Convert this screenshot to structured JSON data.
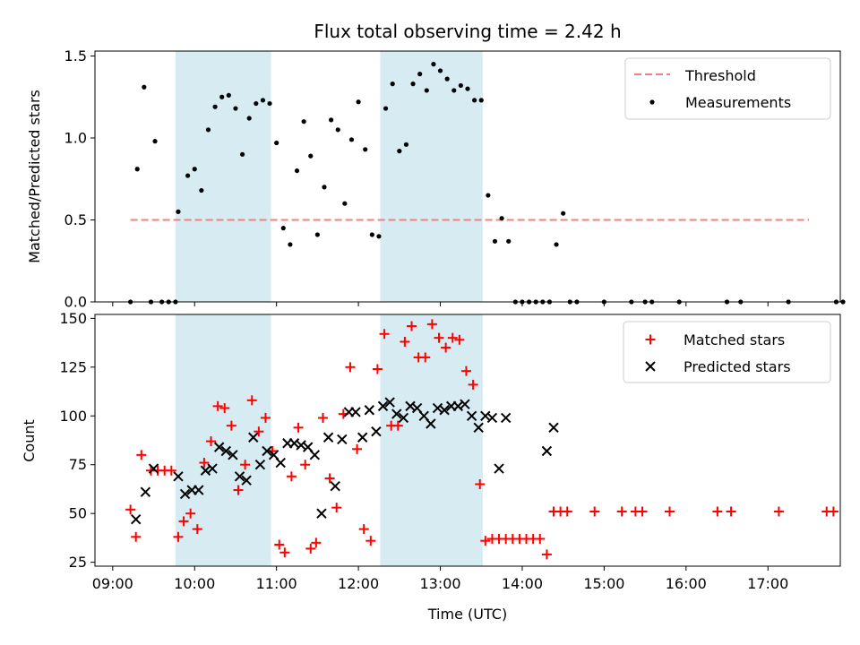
{
  "title": "Flux total observing time = 2.42 h",
  "shaded_intervals": [
    [
      "09:46",
      "10:56"
    ],
    [
      "12:16",
      "13:31"
    ]
  ],
  "colors": {
    "shade": "#add8e6",
    "threshold": "#f08080",
    "matched": "#ff0000",
    "predicted": "#000000",
    "measurement": "#000000"
  },
  "chart_data": [
    {
      "type": "scatter",
      "ylabel": "Matched/Predicted stars",
      "ylim": [
        0,
        1.53
      ],
      "yticks": [
        0.0,
        0.5,
        1.0,
        1.5
      ],
      "ytick_labels": [
        "0.0",
        "0.5",
        "1.0",
        "1.5"
      ],
      "threshold": {
        "label": "Threshold",
        "value": 0.5,
        "x": [
          "09:13",
          "17:30"
        ]
      },
      "legend": {
        "position": "upper right",
        "entries": [
          "Threshold",
          "Measurements"
        ]
      },
      "series": [
        {
          "name": "Measurements",
          "marker": "dot",
          "points": [
            [
              "09:13",
              0.0
            ],
            [
              "09:18",
              0.81
            ],
            [
              "09:23",
              1.31
            ],
            [
              "09:28",
              0.0
            ],
            [
              "09:31",
              0.98
            ],
            [
              "09:36",
              0.0
            ],
            [
              "09:41",
              0.0
            ],
            [
              "09:46",
              0.0
            ],
            [
              "09:48",
              0.55
            ],
            [
              "09:55",
              0.77
            ],
            [
              "10:00",
              0.81
            ],
            [
              "10:05",
              0.68
            ],
            [
              "10:10",
              1.05
            ],
            [
              "10:15",
              1.19
            ],
            [
              "10:20",
              1.25
            ],
            [
              "10:25",
              1.26
            ],
            [
              "10:30",
              1.18
            ],
            [
              "10:35",
              0.9
            ],
            [
              "10:40",
              1.12
            ],
            [
              "10:45",
              1.21
            ],
            [
              "10:50",
              1.23
            ],
            [
              "10:55",
              1.21
            ],
            [
              "11:00",
              0.97
            ],
            [
              "11:05",
              0.45
            ],
            [
              "11:10",
              0.35
            ],
            [
              "11:15",
              0.8
            ],
            [
              "11:20",
              1.1
            ],
            [
              "11:25",
              0.89
            ],
            [
              "11:30",
              0.41
            ],
            [
              "11:35",
              0.7
            ],
            [
              "11:40",
              1.11
            ],
            [
              "11:45",
              1.05
            ],
            [
              "11:50",
              0.6
            ],
            [
              "11:55",
              0.99
            ],
            [
              "12:00",
              1.22
            ],
            [
              "12:05",
              0.93
            ],
            [
              "12:10",
              0.41
            ],
            [
              "12:15",
              0.4
            ],
            [
              "12:20",
              1.18
            ],
            [
              "12:25",
              1.33
            ],
            [
              "12:30",
              0.92
            ],
            [
              "12:35",
              0.96
            ],
            [
              "12:40",
              1.33
            ],
            [
              "12:45",
              1.39
            ],
            [
              "12:50",
              1.29
            ],
            [
              "12:55",
              1.45
            ],
            [
              "13:00",
              1.41
            ],
            [
              "13:05",
              1.36
            ],
            [
              "13:10",
              1.29
            ],
            [
              "13:15",
              1.32
            ],
            [
              "13:20",
              1.3
            ],
            [
              "13:25",
              1.23
            ],
            [
              "13:30",
              1.23
            ],
            [
              "13:35",
              0.65
            ],
            [
              "13:40",
              0.37
            ],
            [
              "13:45",
              0.51
            ],
            [
              "13:50",
              0.37
            ],
            [
              "13:55",
              0.0
            ],
            [
              "14:00",
              0.0
            ],
            [
              "14:05",
              0.0
            ],
            [
              "14:10",
              0.0
            ],
            [
              "14:15",
              0.0
            ],
            [
              "14:20",
              0.0
            ],
            [
              "14:25",
              0.35
            ],
            [
              "14:30",
              0.54
            ],
            [
              "14:35",
              0.0
            ],
            [
              "14:40",
              0.0
            ],
            [
              "15:00",
              0.0
            ],
            [
              "15:20",
              0.0
            ],
            [
              "15:30",
              0.0
            ],
            [
              "15:35",
              0.0
            ],
            [
              "15:55",
              0.0
            ],
            [
              "16:30",
              0.0
            ],
            [
              "16:40",
              0.0
            ],
            [
              "17:15",
              0.0
            ],
            [
              "17:50",
              0.0
            ],
            [
              "17:55",
              0.0
            ]
          ]
        }
      ]
    },
    {
      "type": "scatter",
      "xlabel": "Time (UTC)",
      "ylabel": "Count",
      "ylim": [
        23,
        152
      ],
      "yticks": [
        25,
        50,
        75,
        100,
        125,
        150
      ],
      "ytick_labels": [
        "25",
        "50",
        "75",
        "100",
        "125",
        "150"
      ],
      "xlim": [
        "08:47",
        "17:53"
      ],
      "xticks": [
        "09:00",
        "10:00",
        "11:00",
        "12:00",
        "13:00",
        "14:00",
        "15:00",
        "16:00",
        "17:00"
      ],
      "xtick_labels": [
        "09:00",
        "10:00",
        "11:00",
        "12:00",
        "13:00",
        "14:00",
        "15:00",
        "16:00",
        "17:00"
      ],
      "legend": {
        "position": "upper right",
        "entries": [
          "Matched stars",
          "Predicted stars"
        ]
      },
      "series": [
        {
          "name": "Matched stars",
          "marker": "plus",
          "points": [
            [
              "09:13",
              52
            ],
            [
              "09:17",
              38
            ],
            [
              "09:21",
              80
            ],
            [
              "09:28",
              72
            ],
            [
              "09:33",
              72
            ],
            [
              "09:38",
              72
            ],
            [
              "09:43",
              72
            ],
            [
              "09:48",
              38
            ],
            [
              "09:52",
              46
            ],
            [
              "09:57",
              50
            ],
            [
              "10:02",
              42
            ],
            [
              "10:07",
              76
            ],
            [
              "10:12",
              87
            ],
            [
              "10:17",
              105
            ],
            [
              "10:22",
              104
            ],
            [
              "10:27",
              95
            ],
            [
              "10:32",
              62
            ],
            [
              "10:37",
              75
            ],
            [
              "10:42",
              108
            ],
            [
              "10:47",
              92
            ],
            [
              "10:52",
              99
            ],
            [
              "10:57",
              82
            ],
            [
              "11:02",
              34
            ],
            [
              "11:06",
              30
            ],
            [
              "11:11",
              69
            ],
            [
              "11:16",
              94
            ],
            [
              "11:21",
              75
            ],
            [
              "11:25",
              32
            ],
            [
              "11:29",
              35
            ],
            [
              "11:34",
              99
            ],
            [
              "11:39",
              68
            ],
            [
              "11:44",
              53
            ],
            [
              "11:49",
              101
            ],
            [
              "11:54",
              125
            ],
            [
              "11:59",
              83
            ],
            [
              "12:04",
              42
            ],
            [
              "12:09",
              36
            ],
            [
              "12:14",
              124
            ],
            [
              "12:19",
              142
            ],
            [
              "12:24",
              95
            ],
            [
              "12:29",
              95
            ],
            [
              "12:34",
              138
            ],
            [
              "12:39",
              146
            ],
            [
              "12:44",
              130
            ],
            [
              "12:49",
              130
            ],
            [
              "12:54",
              147
            ],
            [
              "12:59",
              140
            ],
            [
              "13:04",
              135
            ],
            [
              "13:09",
              140
            ],
            [
              "13:14",
              139
            ],
            [
              "13:19",
              123
            ],
            [
              "13:24",
              116
            ],
            [
              "13:29",
              65
            ],
            [
              "13:33",
              36
            ],
            [
              "13:38",
              37
            ],
            [
              "13:43",
              37
            ],
            [
              "13:48",
              37
            ],
            [
              "13:53",
              37
            ],
            [
              "13:58",
              37
            ],
            [
              "14:03",
              37
            ],
            [
              "14:08",
              37
            ],
            [
              "14:13",
              37
            ],
            [
              "14:18",
              29
            ],
            [
              "14:23",
              51
            ],
            [
              "14:28",
              51
            ],
            [
              "14:33",
              51
            ],
            [
              "14:53",
              51
            ],
            [
              "15:13",
              51
            ],
            [
              "15:23",
              51
            ],
            [
              "15:28",
              51
            ],
            [
              "15:48",
              51
            ],
            [
              "16:23",
              51
            ],
            [
              "16:33",
              51
            ],
            [
              "17:08",
              51
            ],
            [
              "17:43",
              51
            ],
            [
              "17:48",
              51
            ]
          ]
        },
        {
          "name": "Predicted stars",
          "marker": "x",
          "points": [
            [
              "09:17",
              47
            ],
            [
              "09:24",
              61
            ],
            [
              "09:30",
              73
            ],
            [
              "09:48",
              69
            ],
            [
              "09:53",
              60
            ],
            [
              "09:58",
              62
            ],
            [
              "10:03",
              62
            ],
            [
              "10:08",
              72
            ],
            [
              "10:13",
              73
            ],
            [
              "10:18",
              84
            ],
            [
              "10:23",
              82
            ],
            [
              "10:28",
              80
            ],
            [
              "10:33",
              69
            ],
            [
              "10:38",
              67
            ],
            [
              "10:43",
              89
            ],
            [
              "10:48",
              75
            ],
            [
              "10:53",
              82
            ],
            [
              "10:58",
              80
            ],
            [
              "11:03",
              76
            ],
            [
              "11:08",
              86
            ],
            [
              "11:13",
              86
            ],
            [
              "11:18",
              85
            ],
            [
              "11:23",
              84
            ],
            [
              "11:28",
              80
            ],
            [
              "11:33",
              50
            ],
            [
              "11:38",
              89
            ],
            [
              "11:43",
              64
            ],
            [
              "11:48",
              88
            ],
            [
              "11:53",
              102
            ],
            [
              "11:58",
              102
            ],
            [
              "12:03",
              89
            ],
            [
              "12:08",
              103
            ],
            [
              "12:13",
              92
            ],
            [
              "12:18",
              105
            ],
            [
              "12:23",
              107
            ],
            [
              "12:28",
              101
            ],
            [
              "12:33",
              99
            ],
            [
              "12:38",
              105
            ],
            [
              "12:43",
              104
            ],
            [
              "12:48",
              100
            ],
            [
              "12:53",
              96
            ],
            [
              "12:58",
              104
            ],
            [
              "13:03",
              103
            ],
            [
              "13:08",
              105
            ],
            [
              "13:13",
              105
            ],
            [
              "13:18",
              106
            ],
            [
              "13:23",
              100
            ],
            [
              "13:28",
              94
            ],
            [
              "13:33",
              100
            ],
            [
              "13:38",
              99
            ],
            [
              "13:43",
              73
            ],
            [
              "13:48",
              99
            ],
            [
              "14:18",
              82
            ],
            [
              "14:23",
              94
            ]
          ]
        }
      ]
    }
  ]
}
